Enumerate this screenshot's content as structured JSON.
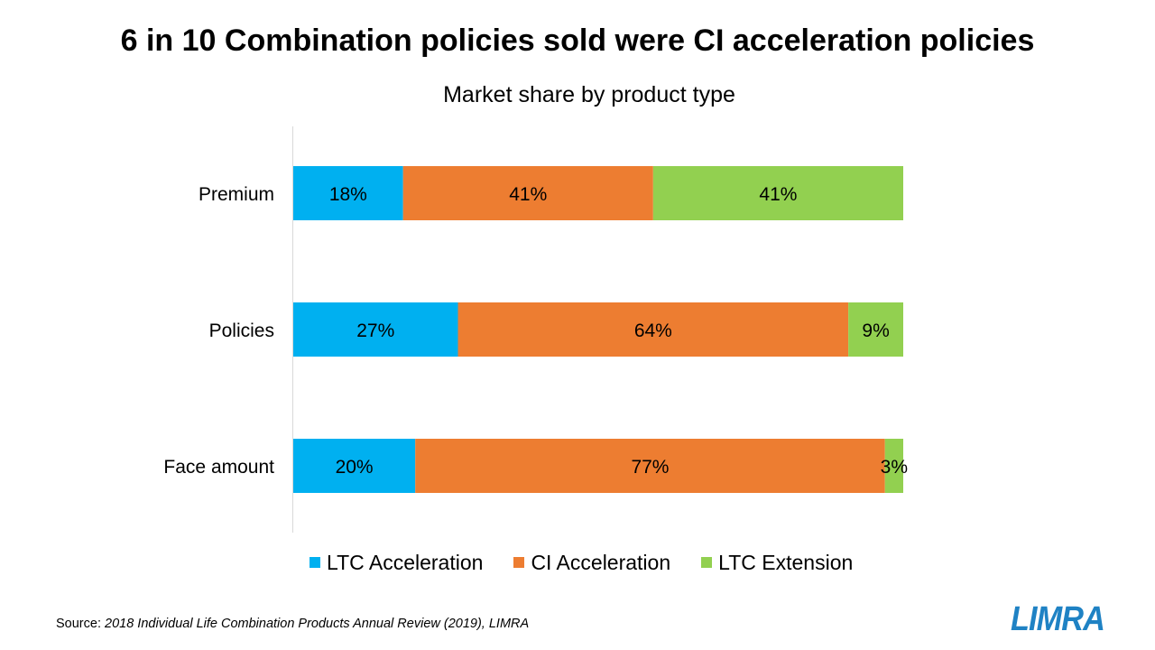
{
  "slide": {
    "headline": "6 in 10 Combination policies sold were CI acceleration policies",
    "source_prefix": "Source: ",
    "source_text": "2018 Individual Life Combination Products Annual Review (2019), LIMRA",
    "logo_text": "LIMRA"
  },
  "chart_data": {
    "type": "bar",
    "orientation": "horizontal",
    "stacked": true,
    "title": "Market share by product type",
    "categories": [
      "Premium",
      "Policies",
      "Face amount"
    ],
    "series": [
      {
        "name": "LTC Acceleration",
        "values": [
          18,
          27,
          20
        ],
        "labels": [
          "18%",
          "27%",
          "20%"
        ],
        "color": "#00b0f0"
      },
      {
        "name": "CI Acceleration",
        "values": [
          41,
          64,
          77
        ],
        "labels": [
          "41%",
          "64%",
          "77%"
        ],
        "color": "#ed7d31"
      },
      {
        "name": "LTC Extension",
        "values": [
          41,
          9,
          3
        ],
        "labels": [
          "41%",
          "9%",
          "3%"
        ],
        "color": "#92d050"
      }
    ],
    "xlim": [
      0,
      100
    ],
    "grid": false,
    "legend_position": "bottom",
    "logo_color": "#1f82c4"
  }
}
